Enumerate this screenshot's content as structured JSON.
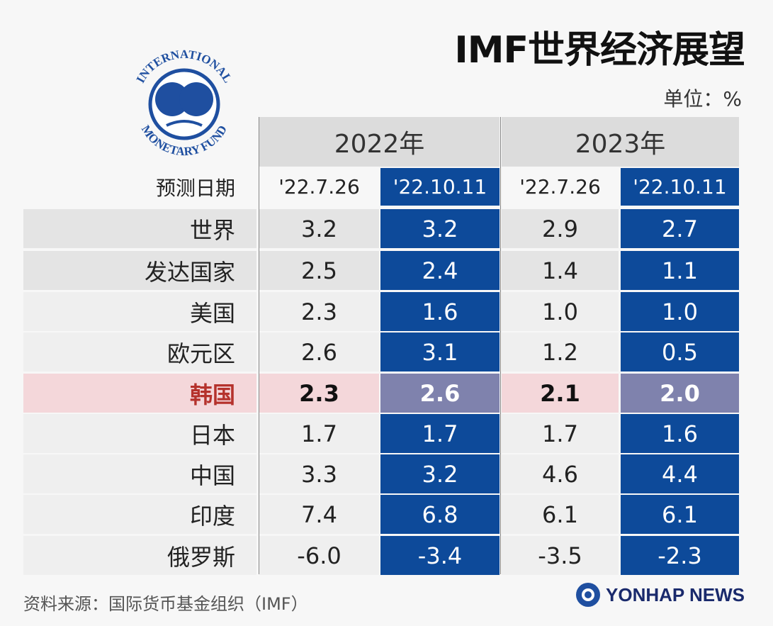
{
  "title": "IMF世界经济展望",
  "unit": "单位：%",
  "logo_text": "INTERNATIONAL MONETARY FUND",
  "source": "资料来源：国际货币基金组织（IMF）",
  "brand": "YONHAP NEWS",
  "colors": {
    "blue": "#0d4a9a",
    "korea_row": "#f4d7da",
    "korea_blue": "#7f82ad",
    "korea_label": "#b5322c"
  },
  "chart_data": {
    "type": "table",
    "years": [
      "2022年",
      "2023年"
    ],
    "date_label": "预测日期",
    "dates": [
      "'22.7.26",
      "'22.10.11",
      "'22.7.26",
      "'22.10.11"
    ],
    "rows": [
      {
        "name": "世界",
        "values": [
          "3.2",
          "3.2",
          "2.9",
          "2.7"
        ]
      },
      {
        "name": "发达国家",
        "values": [
          "2.5",
          "2.4",
          "1.4",
          "1.1"
        ]
      },
      {
        "name": "美国",
        "values": [
          "2.3",
          "1.6",
          "1.0",
          "1.0"
        ]
      },
      {
        "name": "欧元区",
        "values": [
          "2.6",
          "3.1",
          "1.2",
          "0.5"
        ]
      },
      {
        "name": "韩国",
        "values": [
          "2.3",
          "2.6",
          "2.1",
          "2.0"
        ],
        "highlight": true
      },
      {
        "name": "日本",
        "values": [
          "1.7",
          "1.7",
          "1.7",
          "1.6"
        ]
      },
      {
        "name": "中国",
        "values": [
          "3.3",
          "3.2",
          "4.6",
          "4.4"
        ]
      },
      {
        "name": "印度",
        "values": [
          "7.4",
          "6.8",
          "6.1",
          "6.1"
        ]
      },
      {
        "name": "俄罗斯",
        "values": [
          "-6.0",
          "-3.4",
          "-3.5",
          "-2.3"
        ]
      }
    ]
  }
}
